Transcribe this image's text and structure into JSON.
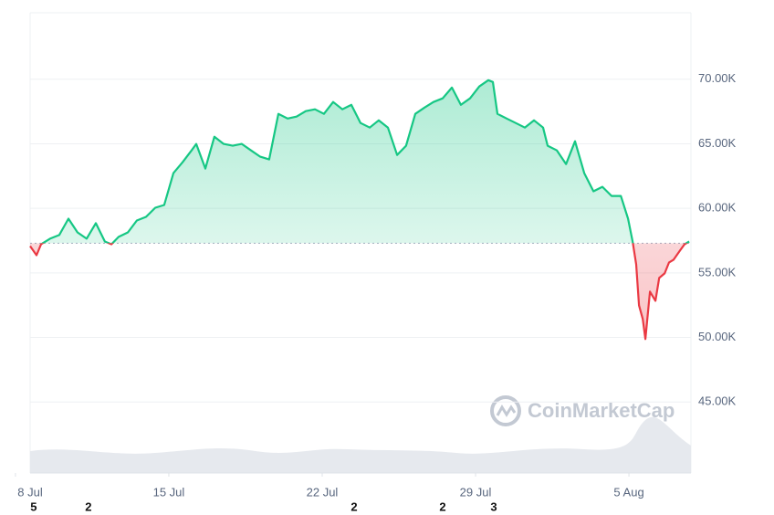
{
  "chart_data": {
    "type": "line",
    "x": [
      8.67,
      8.96,
      9.17,
      9.58,
      10.0,
      10.42,
      10.83,
      11.25,
      11.67,
      12.08,
      12.38,
      12.71,
      13.13,
      13.54,
      13.96,
      14.38,
      14.79,
      15.21,
      15.63,
      16.04,
      16.25,
      16.67,
      17.08,
      17.5,
      17.92,
      18.33,
      18.75,
      19.17,
      19.58,
      20.0,
      20.42,
      20.83,
      21.25,
      21.67,
      22.08,
      22.5,
      22.92,
      23.33,
      23.75,
      24.17,
      24.58,
      25.0,
      25.42,
      25.83,
      26.25,
      26.67,
      27.08,
      27.5,
      27.92,
      28.33,
      28.75,
      29.17,
      29.58,
      29.79,
      30.0,
      30.42,
      30.83,
      31.25,
      31.67,
      32.08,
      32.29,
      32.71,
      33.13,
      33.54,
      33.96,
      34.38,
      34.79,
      35.21,
      35.63,
      35.96,
      36.17,
      36.33,
      36.46,
      36.63,
      36.75,
      36.96,
      37.21,
      37.38,
      37.63,
      37.83,
      38.04,
      38.33,
      38.54,
      38.75
    ],
    "series": [
      {
        "color": "#16c784",
        "below_color": "#ea3943",
        "values": [
          57080,
          56370,
          57220,
          57650,
          57930,
          59200,
          58140,
          57650,
          58850,
          57430,
          57220,
          57790,
          58140,
          59060,
          59340,
          60050,
          60260,
          62730,
          63580,
          64490,
          64990,
          63080,
          65550,
          64990,
          64850,
          64990,
          64490,
          64000,
          63790,
          67320,
          66960,
          67110,
          67530,
          67670,
          67320,
          68240,
          67670,
          68020,
          66610,
          66260,
          66820,
          66260,
          64140,
          64850,
          67320,
          67810,
          68240,
          68520,
          69360,
          68020,
          68520,
          69440,
          69930,
          69790,
          67320,
          66960,
          66610,
          66260,
          66820,
          66260,
          64850,
          64490,
          63430,
          65200,
          62730,
          61320,
          61670,
          60960,
          60960,
          59200,
          57430,
          55670,
          52490,
          51430,
          49880,
          53550,
          52840,
          54610,
          54960,
          55810,
          56020,
          56730,
          57220,
          57430
        ]
      }
    ],
    "baseline": 57300,
    "xlim": [
      8.67,
      38.83
    ],
    "xticks": [
      {
        "value": 8,
        "label": "8 Jul"
      },
      {
        "value": 15,
        "label": "15 Jul"
      },
      {
        "value": 22,
        "label": "22 Jul"
      },
      {
        "value": 29,
        "label": "29 Jul"
      },
      {
        "value": 36,
        "label": "5 Aug"
      }
    ],
    "ylim": [
      39500,
      75150
    ],
    "yticks": [
      {
        "value": 45000,
        "label": "45.00K"
      },
      {
        "value": 50000,
        "label": "50.00K"
      },
      {
        "value": 55000,
        "label": "55.00K"
      },
      {
        "value": 60000,
        "label": "60.00K"
      },
      {
        "value": 65000,
        "label": "65.00K"
      },
      {
        "value": 70000,
        "label": "70.00K"
      }
    ],
    "grid": true,
    "watermark": "CoinMarketCap",
    "annotations": [
      {
        "x": 8.83,
        "text": "5"
      },
      {
        "x": 11.33,
        "text": "2"
      },
      {
        "x": 23.46,
        "text": "2"
      },
      {
        "x": 27.5,
        "text": "2"
      },
      {
        "x": 29.83,
        "text": "3"
      }
    ]
  }
}
